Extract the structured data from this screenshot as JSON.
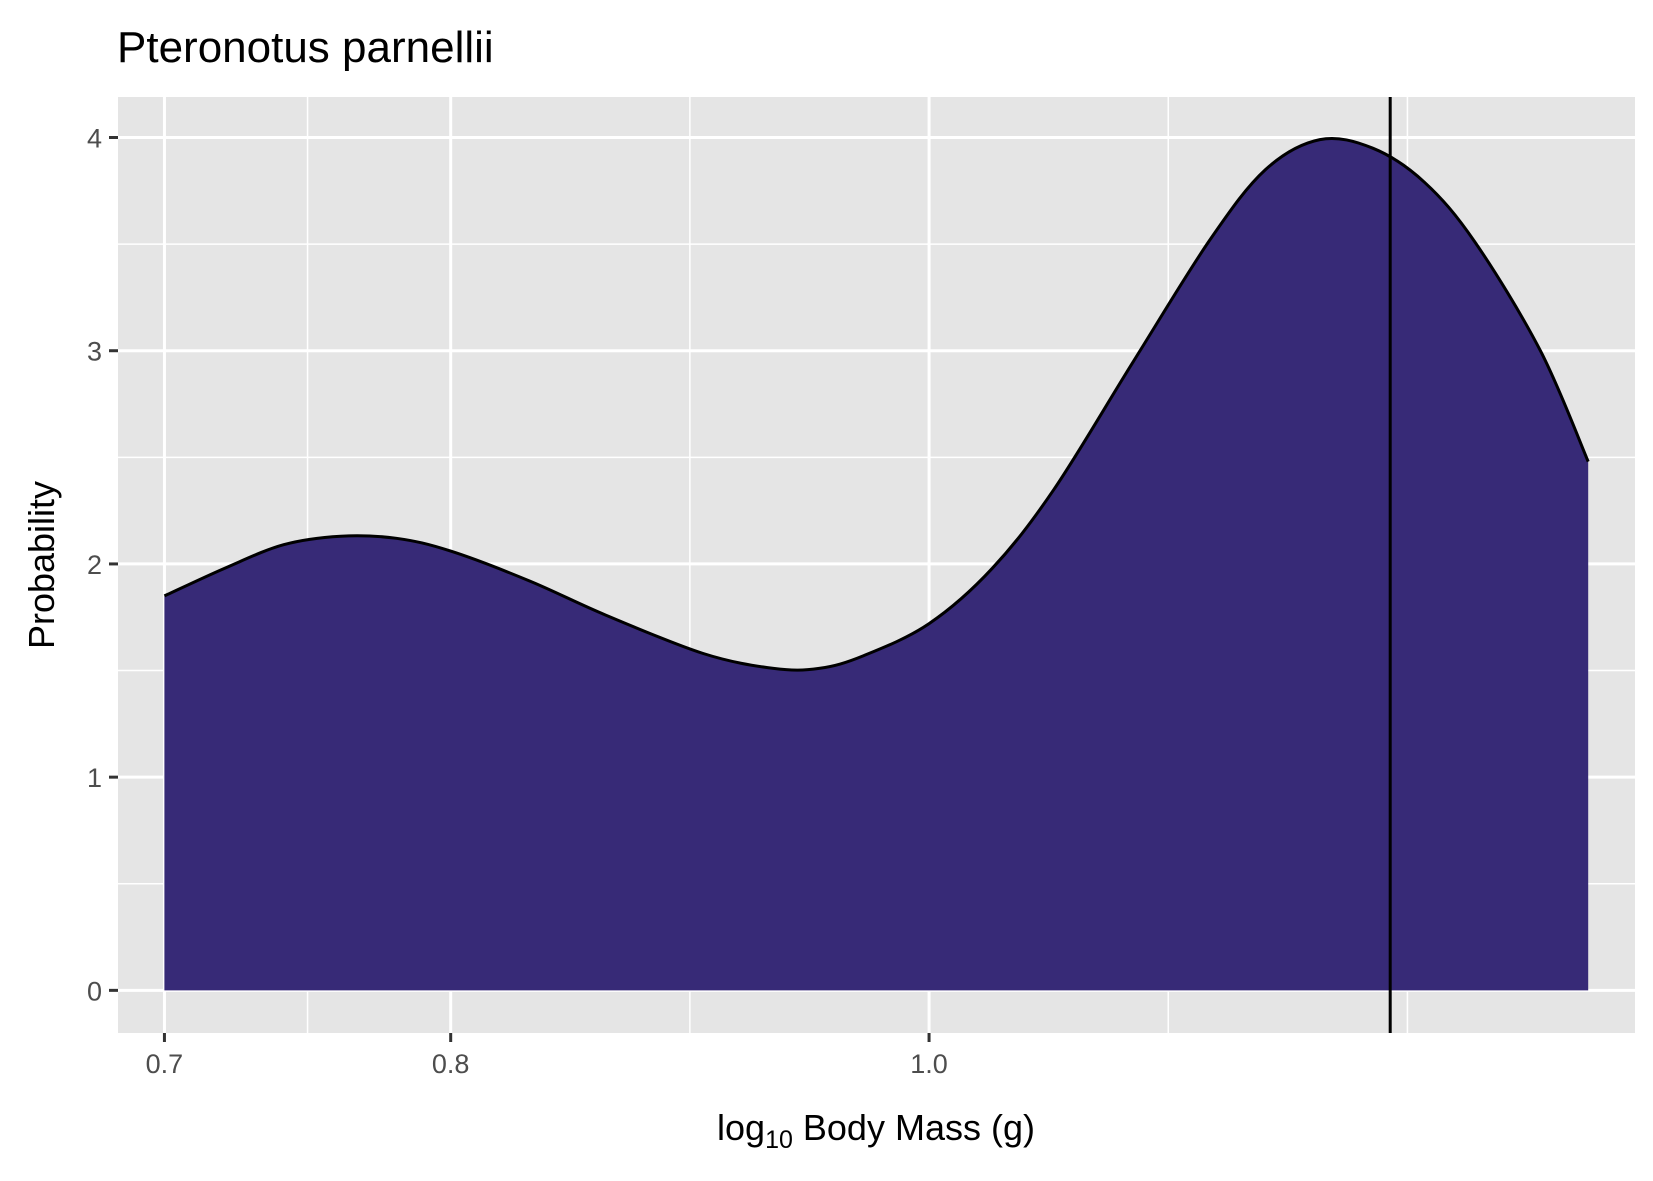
{
  "chart_data": {
    "type": "area",
    "title": "Pteronotus parnellii",
    "xlabel": {
      "prefix": "log",
      "subscript": "10",
      "rest": " Body Mass (g)"
    },
    "ylabel": "Probability",
    "x_ticks": [
      0.7,
      0.8,
      1.0
    ],
    "x_tick_labels": [
      "0.7",
      "0.8",
      "1.0"
    ],
    "y_ticks": [
      0,
      1,
      2,
      3,
      4
    ],
    "y_tick_labels": [
      "0",
      "1",
      "2",
      "3",
      "4"
    ],
    "x_scale": "log10",
    "xlim": [
      0.685,
      1.39
    ],
    "ylim": [
      -0.2,
      4.19
    ],
    "grid": true,
    "fill_color": "#372a77",
    "line_color": "#000000",
    "panel_background": "#e5e5e5",
    "series": [
      {
        "x": [
          0.7,
          0.72,
          0.74,
          0.76,
          0.78,
          0.8,
          0.83,
          0.86,
          0.9,
          0.93,
          0.95,
          0.97,
          1.0,
          1.03,
          1.06,
          1.1,
          1.14,
          1.17,
          1.2,
          1.23,
          1.26,
          1.29,
          1.33,
          1.36
        ],
        "y": [
          1.85,
          1.98,
          2.09,
          2.13,
          2.12,
          2.06,
          1.92,
          1.76,
          1.58,
          1.51,
          1.51,
          1.57,
          1.72,
          1.98,
          2.35,
          2.95,
          3.52,
          3.85,
          3.99,
          3.95,
          3.79,
          3.51,
          3.0,
          2.48
        ]
      }
    ],
    "vline_x": 1.24
  }
}
